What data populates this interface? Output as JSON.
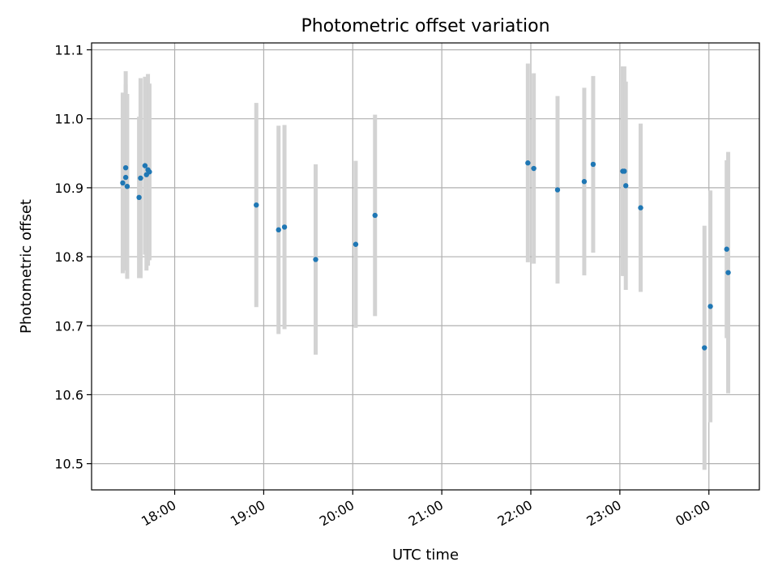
{
  "chart_data": {
    "type": "scatter",
    "title": "Photometric offset variation",
    "xlabel": "UTC time",
    "ylabel": "Photometric offset",
    "x_axis": {
      "kind": "time",
      "range": [
        "17:04",
        "00:34"
      ],
      "ticks": [
        "18:00",
        "19:00",
        "20:00",
        "21:00",
        "22:00",
        "23:00",
        "00:00"
      ]
    },
    "y_axis": {
      "range": [
        10.462,
        11.11
      ],
      "ticks": [
        "10.5",
        "10.6",
        "10.7",
        "10.8",
        "10.9",
        "11.0",
        "11.1"
      ]
    },
    "grid": true,
    "colors": {
      "point": "#1f77b4",
      "errorbar": "#d3d3d3",
      "grid": "#b0b0b0"
    },
    "series": [
      {
        "points": [
          {
            "time": "17:25",
            "y": 10.907,
            "err": 0.131
          },
          {
            "time": "17:27",
            "y": 10.929,
            "err": 0.14
          },
          {
            "time": "17:27",
            "y": 10.915,
            "err": 0.135
          },
          {
            "time": "17:28",
            "y": 10.902,
            "err": 0.134
          },
          {
            "time": "17:36",
            "y": 10.886,
            "err": 0.117
          },
          {
            "time": "17:37",
            "y": 10.914,
            "err": 0.145
          },
          {
            "time": "17:40",
            "y": 10.932,
            "err": 0.129
          },
          {
            "time": "17:41",
            "y": 10.919,
            "err": 0.139
          },
          {
            "time": "17:42",
            "y": 10.926,
            "err": 0.139
          },
          {
            "time": "17:43",
            "y": 10.923,
            "err": 0.128
          },
          {
            "time": "18:55",
            "y": 10.875,
            "err": 0.148
          },
          {
            "time": "19:10",
            "y": 10.839,
            "err": 0.151
          },
          {
            "time": "19:14",
            "y": 10.843,
            "err": 0.148
          },
          {
            "time": "19:35",
            "y": 10.796,
            "err": 0.138
          },
          {
            "time": "20:02",
            "y": 10.818,
            "err": 0.121
          },
          {
            "time": "20:15",
            "y": 10.86,
            "err": 0.146
          },
          {
            "time": "21:58",
            "y": 10.936,
            "err": 0.144
          },
          {
            "time": "22:02",
            "y": 10.928,
            "err": 0.138
          },
          {
            "time": "22:18",
            "y": 10.897,
            "err": 0.136
          },
          {
            "time": "22:36",
            "y": 10.909,
            "err": 0.136
          },
          {
            "time": "22:42",
            "y": 10.934,
            "err": 0.128
          },
          {
            "time": "23:02",
            "y": 10.924,
            "err": 0.152
          },
          {
            "time": "23:03",
            "y": 10.924,
            "err": 0.152
          },
          {
            "time": "23:04",
            "y": 10.903,
            "err": 0.151
          },
          {
            "time": "23:14",
            "y": 10.871,
            "err": 0.122
          },
          {
            "time": "23:57",
            "y": 10.668,
            "err": 0.177
          },
          {
            "time": "00:01",
            "y": 10.728,
            "err": 0.168
          },
          {
            "time": "00:12",
            "y": 10.811,
            "err": 0.129
          },
          {
            "time": "00:13",
            "y": 10.777,
            "err": 0.175
          }
        ]
      }
    ]
  }
}
